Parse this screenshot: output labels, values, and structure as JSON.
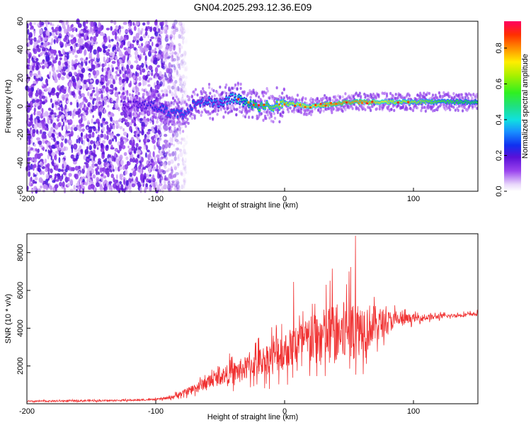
{
  "title": "GN04.2025.293.12.36.E09",
  "chart_data": [
    {
      "type": "heatmap",
      "xlabel": "Height of straight line (km)",
      "ylabel": "Frequency (Hz)",
      "xlim": [
        -200,
        150
      ],
      "ylim": [
        -60,
        60
      ],
      "xticks": [
        -200,
        -100,
        0,
        100
      ],
      "yticks": [
        -60,
        -40,
        -20,
        0,
        20,
        40,
        60
      ],
      "colorbar": {
        "label": "Normalized spectral amplitude",
        "range": [
          0,
          0.95
        ],
        "ticks": [
          0.0,
          0.2,
          0.4,
          0.6,
          0.8
        ],
        "colormap": "rainbow (violet to red)"
      },
      "noise_region_x": [
        -200,
        -85
      ],
      "signal_ridge": {
        "x": [
          -120,
          -100,
          -90,
          -80,
          -70,
          -60,
          -50,
          -40,
          -30,
          -20,
          -10,
          0,
          10,
          20,
          30,
          40,
          50,
          60,
          70,
          80,
          90,
          100,
          110,
          120,
          130,
          140,
          150
        ],
        "freq": [
          1,
          0,
          -4,
          -6,
          2,
          4,
          2,
          6,
          3,
          0,
          0,
          2,
          1,
          0,
          1,
          2,
          3,
          3,
          3,
          3,
          3,
          3,
          3,
          3,
          3,
          3,
          3
        ],
        "amplitude": [
          0.2,
          0.25,
          0.3,
          0.3,
          0.3,
          0.35,
          0.35,
          0.4,
          0.5,
          0.6,
          0.65,
          0.7,
          0.75,
          0.75,
          0.8,
          0.85,
          0.85,
          0.85,
          0.8,
          0.75,
          0.7,
          0.7,
          0.65,
          0.6,
          0.6,
          0.55,
          0.55
        ]
      }
    },
    {
      "type": "line",
      "xlabel": "Height of straight line (km)",
      "ylabel": "SNR (10 * v/v)",
      "xlim": [
        -200,
        150
      ],
      "ylim": [
        0,
        9000
      ],
      "xticks": [
        -200,
        -100,
        0,
        100
      ],
      "yticks": [
        2000,
        4000,
        6000,
        8000
      ],
      "series": [
        {
          "color": "#f03030",
          "x": [
            -200,
            -180,
            -160,
            -140,
            -120,
            -100,
            -90,
            -80,
            -70,
            -60,
            -50,
            -40,
            -30,
            -20,
            -10,
            0,
            10,
            20,
            30,
            40,
            50,
            60,
            70,
            80,
            90,
            100,
            110,
            120,
            130,
            140,
            150
          ],
          "baseline": [
            120,
            140,
            150,
            160,
            180,
            220,
            300,
            500,
            800,
            1100,
            1400,
            1600,
            1800,
            2100,
            2400,
            2700,
            3000,
            3200,
            3400,
            3500,
            3700,
            3900,
            4100,
            4300,
            4400,
            4500,
            4550,
            4600,
            4650,
            4700,
            4750
          ],
          "spread": [
            80,
            80,
            80,
            80,
            80,
            100,
            150,
            300,
            500,
            700,
            900,
            1100,
            1300,
            1500,
            1800,
            2000,
            2300,
            2600,
            3000,
            3300,
            3300,
            2800,
            2000,
            1200,
            700,
            400,
            300,
            250,
            200,
            200,
            200
          ],
          "peaks": [
            {
              "x": 55,
              "y": 8900
            },
            {
              "x": 37,
              "y": 7150
            },
            {
              "x": 7,
              "y": 6450
            },
            {
              "x": 50,
              "y": 7000
            }
          ]
        }
      ]
    }
  ]
}
